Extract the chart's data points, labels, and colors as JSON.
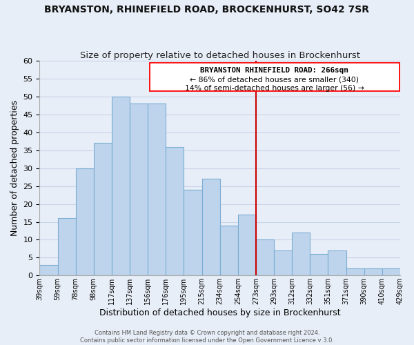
{
  "title": "BRYANSTON, RHINEFIELD ROAD, BROCKENHURST, SO42 7SR",
  "subtitle": "Size of property relative to detached houses in Brockenhurst",
  "xlabel": "Distribution of detached houses by size in Brockenhurst",
  "ylabel": "Number of detached properties",
  "bar_labels": [
    "39sqm",
    "59sqm",
    "78sqm",
    "98sqm",
    "117sqm",
    "137sqm",
    "156sqm",
    "176sqm",
    "195sqm",
    "215sqm",
    "234sqm",
    "254sqm",
    "273sqm",
    "293sqm",
    "312sqm",
    "332sqm",
    "351sqm",
    "371sqm",
    "390sqm",
    "410sqm",
    "429sqm"
  ],
  "bar_heights": [
    3,
    16,
    30,
    37,
    50,
    48,
    48,
    36,
    24,
    27,
    14,
    17,
    10,
    7,
    12,
    6,
    7,
    2,
    2,
    2
  ],
  "bar_color": "#bdd4ec",
  "bar_edge_color": "#7aadd4",
  "vline_color": "#cc0000",
  "ylim": [
    0,
    60
  ],
  "yticks": [
    0,
    5,
    10,
    15,
    20,
    25,
    30,
    35,
    40,
    45,
    50,
    55,
    60
  ],
  "annotation_title": "BRYANSTON RHINEFIELD ROAD: 266sqm",
  "annotation_line1": "← 86% of detached houses are smaller (340)",
  "annotation_line2": "14% of semi-detached houses are larger (56) →",
  "footer1": "Contains HM Land Registry data © Crown copyright and database right 2024.",
  "footer2": "Contains public sector information licensed under the Open Government Licence v 3.0.",
  "bg_color": "#e8eef7",
  "plot_bg_color": "#e8eef7",
  "grid_color": "#c8d4e8"
}
